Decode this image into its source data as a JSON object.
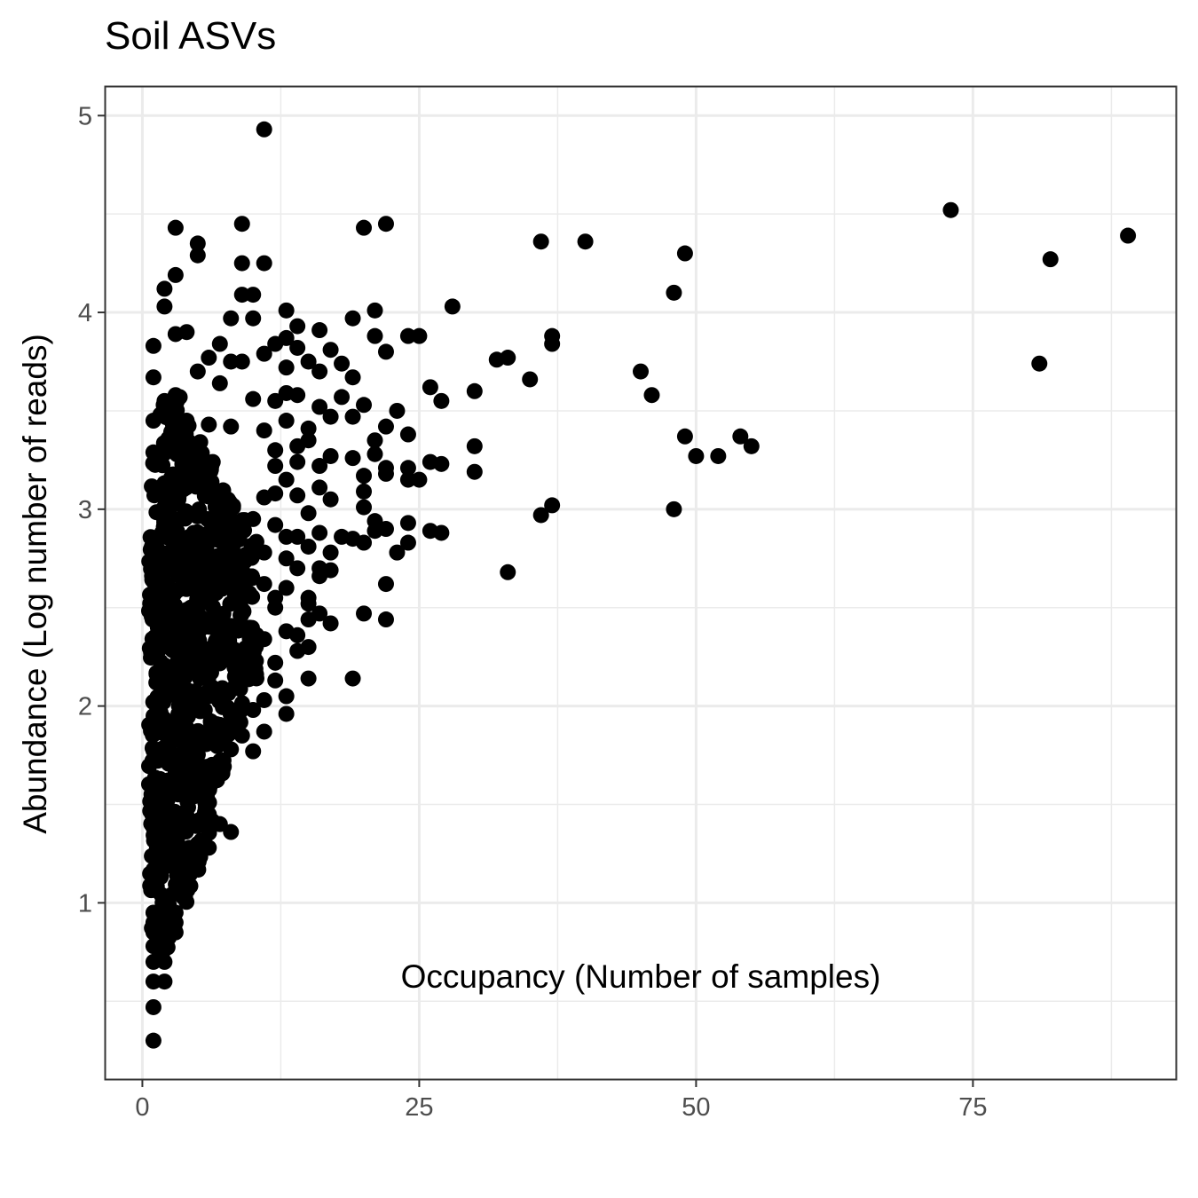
{
  "chart_data": {
    "type": "scatter",
    "title": "Soil ASVs",
    "xlabel": "Occupancy (Number of samples)",
    "ylabel": "Abundance (Log number of reads)",
    "xlim": [
      -3.4,
      93.4
    ],
    "ylim": [
      0.1,
      5.15
    ],
    "x_ticks": [
      0,
      25,
      50,
      75
    ],
    "x_tick_labels": [
      "0",
      "25",
      "50",
      "75"
    ],
    "y_ticks": [
      1,
      2,
      3,
      4,
      5
    ],
    "y_tick_labels": [
      "1",
      "2",
      "3",
      "4",
      "5"
    ],
    "grid": true,
    "point_color": "#000000",
    "points": [
      [
        11,
        4.93
      ],
      [
        9,
        4.45
      ],
      [
        3,
        4.43
      ],
      [
        20,
        4.43
      ],
      [
        22,
        4.45
      ],
      [
        5,
        4.35
      ],
      [
        5,
        4.29
      ],
      [
        9,
        4.25
      ],
      [
        11,
        4.25
      ],
      [
        3,
        4.19
      ],
      [
        2,
        4.12
      ],
      [
        2,
        4.03
      ],
      [
        9,
        4.09
      ],
      [
        10,
        4.09
      ],
      [
        13,
        4.01
      ],
      [
        8,
        3.97
      ],
      [
        10,
        3.97
      ],
      [
        19,
        3.97
      ],
      [
        21,
        4.01
      ],
      [
        14,
        3.93
      ],
      [
        1,
        3.83
      ],
      [
        3,
        3.89
      ],
      [
        4,
        3.9
      ],
      [
        7,
        3.84
      ],
      [
        11,
        3.79
      ],
      [
        12,
        3.84
      ],
      [
        13,
        3.87
      ],
      [
        16,
        3.91
      ],
      [
        21,
        3.88
      ],
      [
        24,
        3.88
      ],
      [
        25,
        3.88
      ],
      [
        28,
        4.03
      ],
      [
        1,
        3.67
      ],
      [
        2,
        3.55
      ],
      [
        3,
        3.58
      ],
      [
        5,
        3.7
      ],
      [
        6,
        3.77
      ],
      [
        7,
        3.64
      ],
      [
        8,
        3.75
      ],
      [
        9,
        3.75
      ],
      [
        10,
        3.56
      ],
      [
        12,
        3.55
      ],
      [
        13,
        3.72
      ],
      [
        14,
        3.82
      ],
      [
        15,
        3.75
      ],
      [
        16,
        3.7
      ],
      [
        17,
        3.81
      ],
      [
        18,
        3.74
      ],
      [
        19,
        3.67
      ],
      [
        22,
        3.8
      ],
      [
        26,
        3.62
      ],
      [
        27,
        3.55
      ],
      [
        30,
        3.6
      ],
      [
        13,
        3.59
      ],
      [
        14,
        3.58
      ],
      [
        16,
        3.52
      ],
      [
        18,
        3.57
      ],
      [
        20,
        3.53
      ],
      [
        23,
        3.5
      ],
      [
        1,
        3.45
      ],
      [
        4,
        3.45
      ],
      [
        6,
        3.43
      ],
      [
        8,
        3.42
      ],
      [
        11,
        3.4
      ],
      [
        13,
        3.45
      ],
      [
        15,
        3.41
      ],
      [
        17,
        3.47
      ],
      [
        19,
        3.47
      ],
      [
        21,
        3.35
      ],
      [
        22,
        3.42
      ],
      [
        24,
        3.38
      ],
      [
        12,
        3.3
      ],
      [
        14,
        3.32
      ],
      [
        15,
        3.35
      ],
      [
        17,
        3.27
      ],
      [
        19,
        3.26
      ],
      [
        21,
        3.28
      ],
      [
        22,
        3.21
      ],
      [
        24,
        3.21
      ],
      [
        26,
        3.24
      ],
      [
        27,
        3.23
      ],
      [
        30,
        3.32
      ],
      [
        12,
        3.22
      ],
      [
        13,
        3.15
      ],
      [
        14,
        3.24
      ],
      [
        16,
        3.22
      ],
      [
        20,
        3.17
      ],
      [
        22,
        3.18
      ],
      [
        24,
        3.15
      ],
      [
        25,
        3.15
      ],
      [
        30,
        3.19
      ],
      [
        11,
        3.06
      ],
      [
        12,
        3.08
      ],
      [
        14,
        3.07
      ],
      [
        15,
        2.98
      ],
      [
        16,
        3.11
      ],
      [
        17,
        3.05
      ],
      [
        20,
        3.09
      ],
      [
        20,
        3.01
      ],
      [
        21,
        2.94
      ],
      [
        22,
        2.9
      ],
      [
        24,
        2.93
      ],
      [
        26,
        2.89
      ],
      [
        27,
        2.88
      ],
      [
        10,
        2.95
      ],
      [
        12,
        2.92
      ],
      [
        13,
        2.86
      ],
      [
        14,
        2.86
      ],
      [
        15,
        2.81
      ],
      [
        16,
        2.88
      ],
      [
        17,
        2.78
      ],
      [
        18,
        2.86
      ],
      [
        19,
        2.85
      ],
      [
        20,
        2.83
      ],
      [
        21,
        2.89
      ],
      [
        23,
        2.78
      ],
      [
        24,
        2.83
      ],
      [
        11,
        2.78
      ],
      [
        13,
        2.75
      ],
      [
        14,
        2.7
      ],
      [
        16,
        2.7
      ],
      [
        16,
        2.66
      ],
      [
        17,
        2.69
      ],
      [
        22,
        2.62
      ],
      [
        11,
        2.62
      ],
      [
        12,
        2.55
      ],
      [
        13,
        2.6
      ],
      [
        15,
        2.55
      ],
      [
        15,
        2.52
      ],
      [
        16,
        2.47
      ],
      [
        17,
        2.42
      ],
      [
        20,
        2.47
      ],
      [
        22,
        2.44
      ],
      [
        15,
        2.44
      ],
      [
        12,
        2.5
      ],
      [
        13,
        2.38
      ],
      [
        14,
        2.36
      ],
      [
        15,
        2.3
      ],
      [
        14,
        2.28
      ],
      [
        11,
        2.34
      ],
      [
        10,
        2.26
      ],
      [
        12,
        2.22
      ],
      [
        10,
        2.16
      ],
      [
        12,
        2.13
      ],
      [
        15,
        2.14
      ],
      [
        19,
        2.14
      ],
      [
        13,
        2.05
      ],
      [
        11,
        2.03
      ],
      [
        10,
        1.98
      ],
      [
        13,
        1.96
      ],
      [
        9,
        1.85
      ],
      [
        11,
        1.87
      ],
      [
        10,
        1.77
      ],
      [
        8,
        1.78
      ],
      [
        7,
        1.72
      ],
      [
        8,
        1.36
      ],
      [
        6,
        1.28
      ],
      [
        7,
        1.4
      ],
      [
        6,
        1.45
      ],
      [
        36,
        4.36
      ],
      [
        40,
        4.36
      ],
      [
        49,
        4.3
      ],
      [
        48,
        4.1
      ],
      [
        37,
        3.88
      ],
      [
        37,
        3.84
      ],
      [
        32,
        3.76
      ],
      [
        33,
        3.77
      ],
      [
        35,
        3.66
      ],
      [
        45,
        3.7
      ],
      [
        46,
        3.58
      ],
      [
        49,
        3.37
      ],
      [
        50,
        3.27
      ],
      [
        52,
        3.27
      ],
      [
        54,
        3.37
      ],
      [
        55,
        3.32
      ],
      [
        36,
        2.97
      ],
      [
        37,
        3.02
      ],
      [
        48,
        3.0
      ],
      [
        33,
        2.68
      ],
      [
        73,
        4.52
      ],
      [
        82,
        4.27
      ],
      [
        89,
        4.39
      ],
      [
        81,
        3.74
      ],
      [
        1,
        0.3
      ],
      [
        1,
        0.47
      ],
      [
        1,
        0.6
      ],
      [
        2,
        0.6
      ],
      [
        1,
        0.7
      ],
      [
        2,
        0.7
      ],
      [
        1,
        0.78
      ],
      [
        2,
        0.78
      ],
      [
        1,
        0.85
      ],
      [
        2,
        0.85
      ],
      [
        3,
        0.85
      ],
      [
        1,
        0.9
      ],
      [
        2,
        0.9
      ],
      [
        3,
        0.9
      ],
      [
        1,
        0.95
      ],
      [
        2,
        0.95
      ],
      [
        3,
        0.95
      ],
      [
        4,
        1.08
      ],
      [
        5,
        1.22
      ],
      [
        4,
        1.15
      ],
      [
        5,
        1.3
      ]
    ]
  }
}
